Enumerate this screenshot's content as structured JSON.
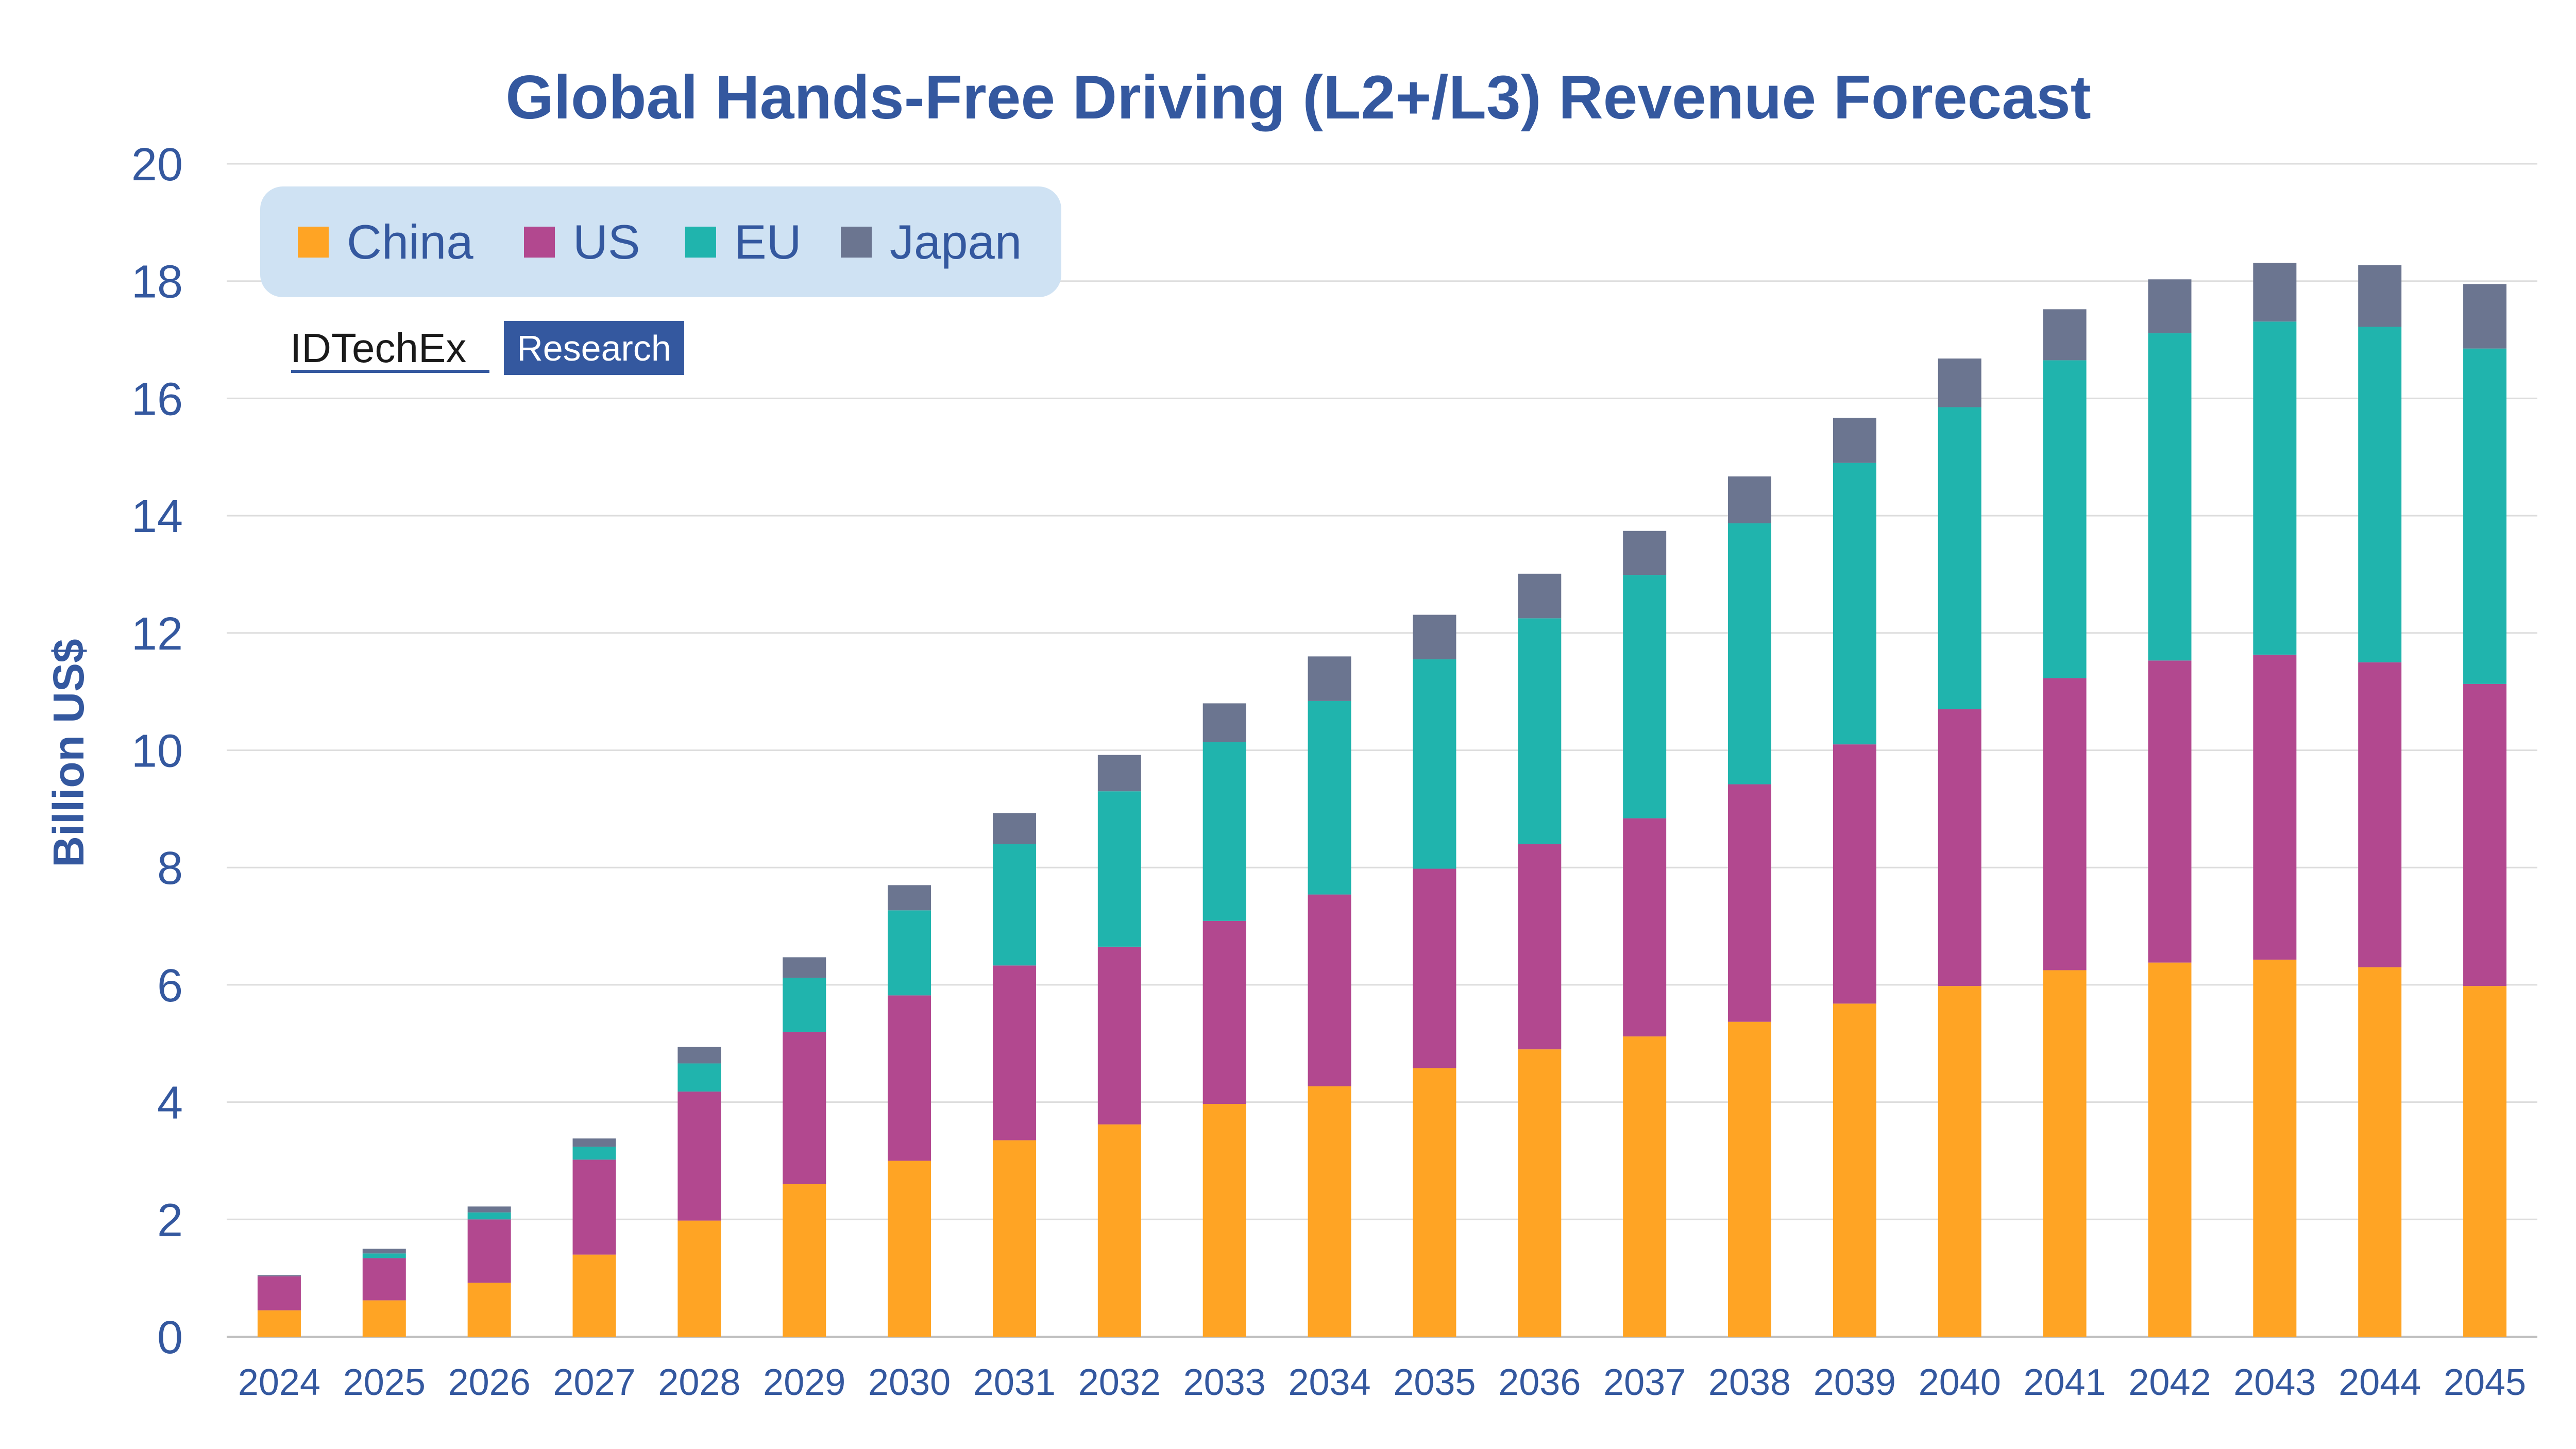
{
  "colors": {
    "China": "#ffa424",
    "US": "#b2488f",
    "EU": "#20b4ad",
    "Japan": "#6b7590",
    "text": "#34589f",
    "grid": "#dddddd",
    "legend_bg": "#cfe2f3",
    "logo_box": "#34589f"
  },
  "logo": {
    "name": "IDTechEx",
    "tag": "Research"
  },
  "chart_data": {
    "type": "bar",
    "stacked": true,
    "title": "Global Hands-Free Driving (L2+/L3) Revenue Forecast",
    "xlabel": "",
    "ylabel": "Billion US$",
    "ylim": [
      0,
      20
    ],
    "yticks": [
      "0",
      "2",
      "4",
      "6",
      "8",
      "10",
      "12",
      "14",
      "16",
      "18",
      "20"
    ],
    "grid": true,
    "legend_position": "top-left",
    "categories": [
      "2024",
      "2025",
      "2026",
      "2027",
      "2028",
      "2029",
      "2030",
      "2031",
      "2032",
      "2033",
      "2034",
      "2035",
      "2036",
      "2037",
      "2038",
      "2039",
      "2040",
      "2041",
      "2042",
      "2043",
      "2044",
      "2045"
    ],
    "series": [
      {
        "name": "China",
        "values": [
          0.45,
          0.62,
          0.92,
          1.4,
          1.98,
          2.6,
          3.0,
          3.35,
          3.62,
          3.97,
          4.27,
          4.58,
          4.9,
          5.12,
          5.37,
          5.68,
          5.98,
          6.25,
          6.38,
          6.43,
          6.3,
          5.98
        ]
      },
      {
        "name": "US",
        "values": [
          0.58,
          0.72,
          1.08,
          1.62,
          2.2,
          2.6,
          2.82,
          2.98,
          3.03,
          3.12,
          3.27,
          3.4,
          3.5,
          3.72,
          4.05,
          4.42,
          4.72,
          4.98,
          5.15,
          5.2,
          5.2,
          5.15
        ]
      },
      {
        "name": "EU",
        "values": [
          0.0,
          0.08,
          0.12,
          0.22,
          0.48,
          0.92,
          1.45,
          2.07,
          2.65,
          3.05,
          3.3,
          3.57,
          3.85,
          4.15,
          4.45,
          4.8,
          5.15,
          5.42,
          5.58,
          5.68,
          5.72,
          5.72
        ]
      },
      {
        "name": "Japan",
        "values": [
          0.02,
          0.08,
          0.1,
          0.14,
          0.28,
          0.35,
          0.43,
          0.53,
          0.62,
          0.66,
          0.76,
          0.76,
          0.76,
          0.75,
          0.8,
          0.77,
          0.83,
          0.87,
          0.92,
          1.0,
          1.05,
          1.1
        ]
      }
    ]
  }
}
